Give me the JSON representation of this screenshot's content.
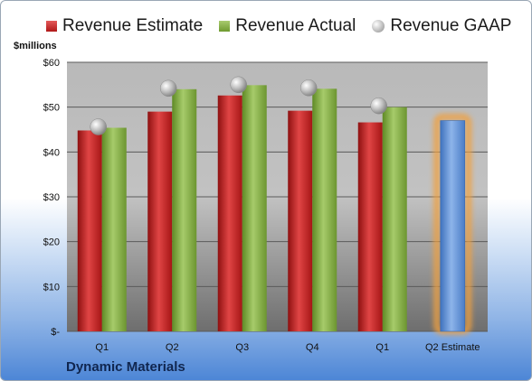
{
  "colors": {
    "estimate": "#c62828",
    "actual": "#86ad4a",
    "gaap": "#a8a8a8",
    "estimate_bar": "#5b8fd1",
    "highlight": "#f0a040"
  },
  "company": "Dynamic Materials",
  "chart_data": {
    "type": "bar",
    "title": "",
    "ylabel": "$millions",
    "xlabel": "",
    "ylim": [
      0,
      60
    ],
    "grid": true,
    "legend": "top",
    "yticks": [
      0,
      10,
      20,
      30,
      40,
      50,
      60
    ],
    "ytick_labels": [
      "$-",
      "$10",
      "$20",
      "$30",
      "$40",
      "$50",
      "$60"
    ],
    "categories": [
      "Q1",
      "Q2",
      "Q3",
      "Q4",
      "Q1",
      "Q2 Estimate"
    ],
    "series": [
      {
        "name": "Revenue Estimate",
        "type": "bar",
        "values": [
          44.8,
          49.0,
          52.6,
          49.2,
          46.6,
          47.0
        ]
      },
      {
        "name": "Revenue Actual",
        "type": "bar",
        "values": [
          45.4,
          54.0,
          54.9,
          54.1,
          50.0,
          null
        ]
      },
      {
        "name": "Revenue GAAP",
        "type": "scatter",
        "values": [
          45.6,
          54.2,
          55.0,
          54.3,
          50.3,
          null
        ]
      }
    ]
  }
}
